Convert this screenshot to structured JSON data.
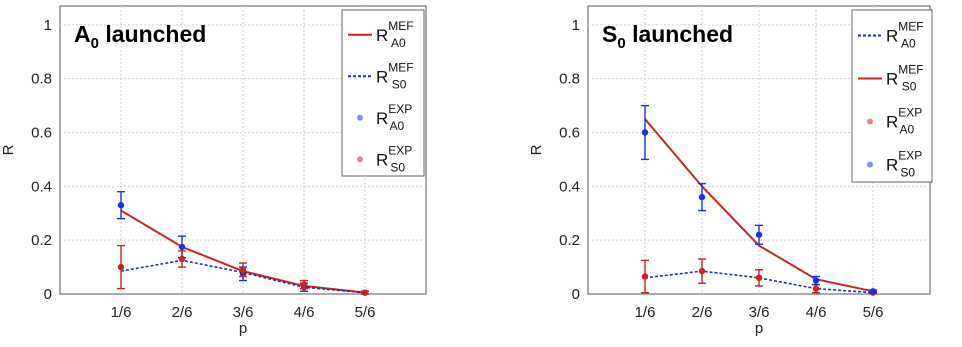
{
  "chart_data": [
    {
      "type": "line",
      "title": "A",
      "title_sub": "0",
      "title_rest": " launched",
      "xlabel": "p",
      "ylabel": "R",
      "categories": [
        "1/6",
        "2/6",
        "3/6",
        "4/6",
        "5/6"
      ],
      "ylim": [
        0,
        1.07
      ],
      "yticks": [
        "0",
        "0.2",
        "0.4",
        "0.6",
        "0.8",
        "1"
      ],
      "grid": true,
      "legend_position": "top-right",
      "series": [
        {
          "legend_base": "R",
          "legend_sup": "MEF",
          "legend_sub": "A0",
          "kind": "line",
          "color": "#cc2222",
          "dash": "solid",
          "values": [
            0.31,
            0.175,
            0.085,
            0.03,
            0.005
          ]
        },
        {
          "legend_base": "R",
          "legend_sup": "MEF",
          "legend_sub": "S0",
          "kind": "line",
          "color": "#2233aa",
          "dash": "dashed",
          "values": [
            0.085,
            0.125,
            0.08,
            0.025,
            0.005
          ]
        },
        {
          "legend_base": "R",
          "legend_sup": "EXP",
          "legend_sub": "A0",
          "kind": "errorbar",
          "color": "#1a33dd",
          "values": [
            0.33,
            0.175,
            0.075,
            0.025,
            0.005
          ],
          "err": [
            0.05,
            0.04,
            0.025,
            0.015,
            0.005
          ]
        },
        {
          "legend_base": "R",
          "legend_sup": "EXP",
          "legend_sub": "S0",
          "kind": "errorbar",
          "color": "#cc2222",
          "values": [
            0.1,
            0.13,
            0.09,
            0.035,
            0.005
          ],
          "err": [
            0.08,
            0.03,
            0.025,
            0.015,
            0.005
          ]
        }
      ]
    },
    {
      "type": "line",
      "title": "S",
      "title_sub": "0",
      "title_rest": " launched",
      "xlabel": "p",
      "ylabel": "R",
      "categories": [
        "1/6",
        "2/6",
        "3/6",
        "4/6",
        "5/6"
      ],
      "ylim": [
        0,
        1.07
      ],
      "yticks": [
        "0",
        "0.2",
        "0.4",
        "0.6",
        "0.8",
        "1"
      ],
      "grid": true,
      "legend_position": "top-right",
      "series": [
        {
          "legend_base": "R",
          "legend_sup": "MEF",
          "legend_sub": "A0",
          "kind": "line",
          "color": "#2233aa",
          "dash": "dashed",
          "values": [
            0.06,
            0.085,
            0.06,
            0.02,
            0.005
          ]
        },
        {
          "legend_base": "R",
          "legend_sup": "MEF",
          "legend_sub": "S0",
          "kind": "line",
          "color": "#cc2222",
          "dash": "solid",
          "values": [
            0.65,
            0.4,
            0.18,
            0.055,
            0.01
          ]
        },
        {
          "legend_base": "R",
          "legend_sup": "EXP",
          "legend_sub": "A0",
          "kind": "errorbar",
          "color": "#cc2222",
          "values": [
            0.065,
            0.085,
            0.06,
            0.02,
            0.005
          ],
          "err": [
            0.06,
            0.045,
            0.03,
            0.015,
            0.005
          ]
        },
        {
          "legend_base": "R",
          "legend_sup": "EXP",
          "legend_sub": "S0",
          "kind": "errorbar",
          "color": "#1a33dd",
          "values": [
            0.6,
            0.36,
            0.22,
            0.05,
            0.01
          ],
          "err": [
            0.1,
            0.05,
            0.035,
            0.015,
            0.005
          ]
        }
      ]
    }
  ]
}
